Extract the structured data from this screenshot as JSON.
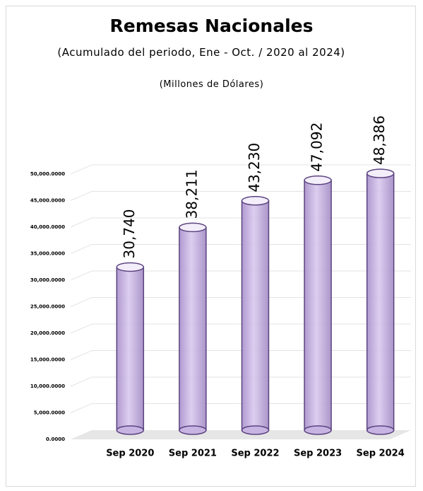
{
  "chart_data": {
    "type": "bar",
    "title": "Remesas Nacionales",
    "subtitle": "(Acumulado del periodo, Ene - Oct. / 2020 al 2024)",
    "subtitle2": "(Millones de Dólares)",
    "categories": [
      "Sep 2020",
      "Sep 2021",
      "Sep 2022",
      "Sep 2023",
      "Sep 2024"
    ],
    "values": [
      30740,
      38211,
      43230,
      47092,
      48386
    ],
    "value_labels": [
      "30,740",
      "38,211",
      "43,230",
      "47,092",
      "48,386"
    ],
    "color": "#c8b4e2",
    "ylim": [
      0,
      50000
    ],
    "yticks": [
      {
        "value": 0,
        "label": "0.0000"
      },
      {
        "value": 5000,
        "label": "5,000.0000"
      },
      {
        "value": 10000,
        "label": "10,000.0000"
      },
      {
        "value": 15000,
        "label": "15,000.0000"
      },
      {
        "value": 20000,
        "label": "20,000.0000"
      },
      {
        "value": 25000,
        "label": "25,000.0000"
      },
      {
        "value": 30000,
        "label": "30,000.0000"
      },
      {
        "value": 35000,
        "label": "35,000.0000"
      },
      {
        "value": 40000,
        "label": "40,000.0000"
      },
      {
        "value": 45000,
        "label": "45,000.0000"
      },
      {
        "value": 50000,
        "label": "50,000.0000"
      }
    ],
    "grid": true
  }
}
